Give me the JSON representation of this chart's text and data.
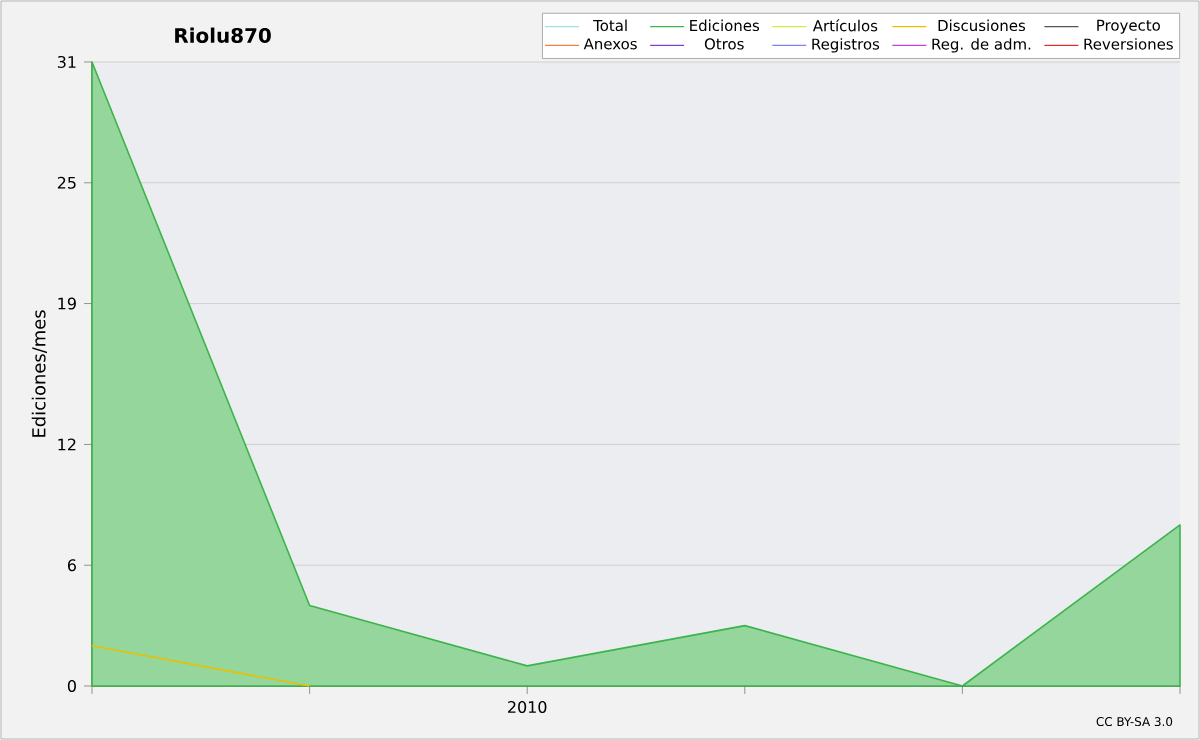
{
  "chart_data": {
    "type": "area",
    "title": "Riolu870",
    "ylabel": "Ediciones/mes",
    "categories": [
      null,
      null,
      "2010",
      null,
      null,
      null
    ],
    "ylim": [
      0,
      31
    ],
    "yticks": [
      0,
      6,
      12,
      19,
      25,
      31
    ],
    "grid": "y",
    "legend": "top right",
    "annotations": [
      "CC BY-SA 3.0"
    ],
    "series": [
      {
        "name": "Total",
        "color": "#a0e0e0",
        "type": "line",
        "values": [
          null,
          null,
          null,
          null,
          null,
          null
        ]
      },
      {
        "name": "Ediciones",
        "color": "#3cb44b",
        "values": [
          31,
          4,
          1,
          3,
          0,
          8
        ]
      },
      {
        "name": "Artículos",
        "color": "#ccee44",
        "type": "line",
        "values": [
          null,
          null,
          null,
          null,
          null,
          null
        ]
      },
      {
        "name": "Discusiones",
        "color": "#e8c000",
        "type": "line",
        "values": [
          2,
          0,
          null,
          null,
          null,
          null
        ]
      },
      {
        "name": "Proyecto",
        "color": "#555555",
        "type": "line",
        "values": [
          null,
          null,
          null,
          null,
          null,
          null
        ]
      },
      {
        "name": "Anexos",
        "color": "#f08040",
        "type": "line",
        "values": [
          null,
          null,
          null,
          null,
          null,
          null
        ]
      },
      {
        "name": "Otros",
        "color": "#8040d0",
        "type": "line",
        "values": [
          null,
          null,
          null,
          null,
          null,
          null
        ]
      },
      {
        "name": "Registros",
        "color": "#8080f0",
        "type": "line",
        "values": [
          null,
          null,
          null,
          null,
          null,
          null
        ]
      },
      {
        "name": "Reg. de adm.",
        "color": "#c040e0",
        "type": "line",
        "values": [
          null,
          null,
          null,
          null,
          null,
          null
        ]
      },
      {
        "name": "Reversiones",
        "color": "#e03030",
        "type": "line",
        "values": [
          null,
          null,
          null,
          null,
          null,
          null
        ]
      }
    ]
  }
}
